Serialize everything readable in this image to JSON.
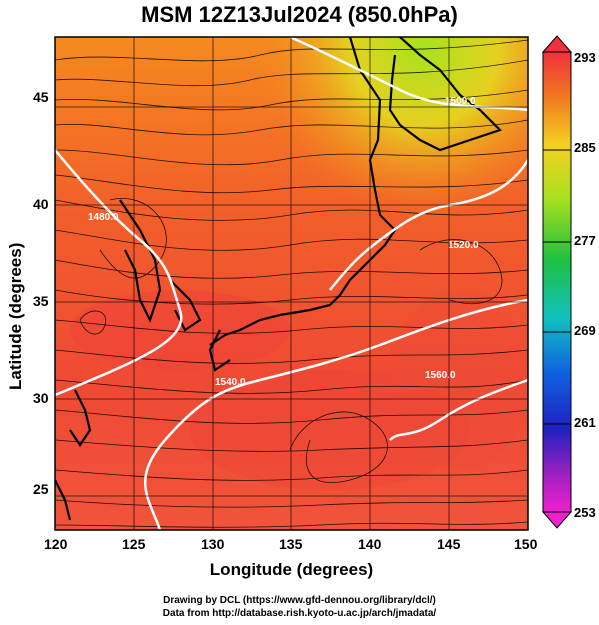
{
  "title": "MSM 12Z13Jul2024 (850.0hPa)",
  "xlabel": "Longitude (degrees)",
  "ylabel": "Latitude  (degrees)",
  "x_ticks": [
    "120",
    "125",
    "130",
    "135",
    "140",
    "145",
    "150"
  ],
  "y_ticks": [
    "45",
    "40",
    "35",
    "30",
    "25"
  ],
  "colorbar_ticks": [
    "293",
    "285",
    "277",
    "269",
    "261",
    "253"
  ],
  "contour_labels": [
    "1480.0",
    "1500.0",
    "1520.0",
    "1540.0",
    "1560.0"
  ],
  "credits": {
    "line1": "Drawing by DCL (https://www.gfd-dennou.org/library/dcl/)",
    "line2": "Data from http://database.rish.kyoto-u.ac.jp/arch/jmadata/"
  },
  "colors": {
    "warm": "#f04a3a",
    "mid": "#f07a20",
    "cool": "#a8e020",
    "contour": "#ffffff"
  }
}
